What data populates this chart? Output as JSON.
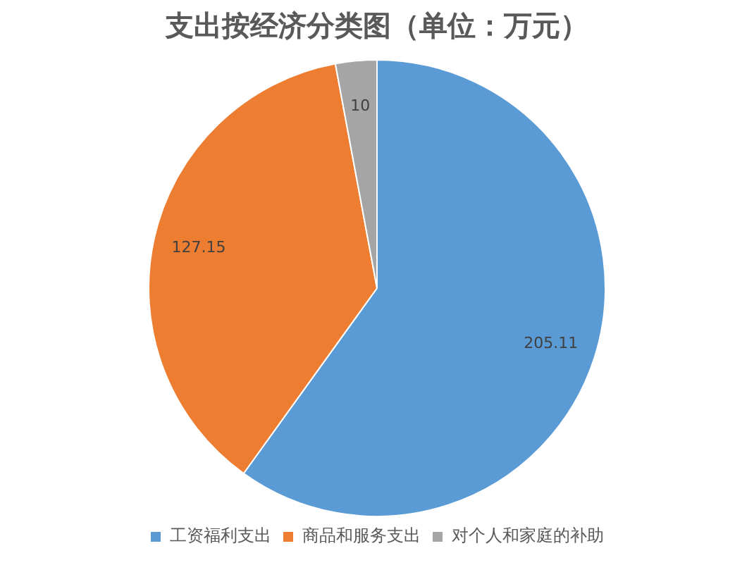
{
  "chart_data": {
    "type": "pie",
    "title": "支出按经济分类图（单位：万元）",
    "categories": [
      "工资福利支出",
      "商品和服务支出",
      "对个人和家庭的补助"
    ],
    "values": [
      205.11,
      127.15,
      10
    ],
    "colors": [
      "#5b9bd5",
      "#ed7d31",
      "#a5a5a5"
    ],
    "data_labels": true,
    "legend": "bottom"
  }
}
